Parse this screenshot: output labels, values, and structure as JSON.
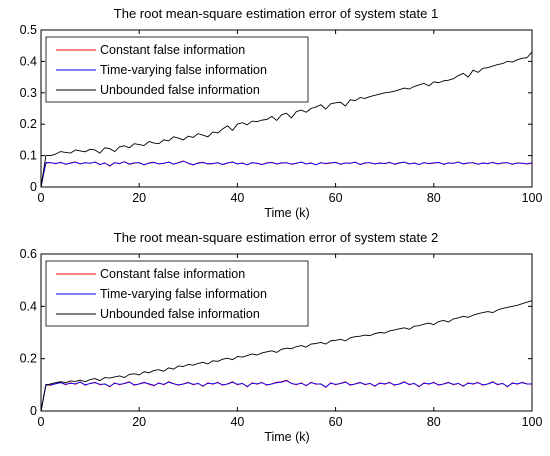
{
  "chart_data": [
    {
      "type": "line",
      "title": "The root mean-square estimation error of system state 1",
      "xlabel": "Time (k)",
      "ylabel": "",
      "xlim": [
        0,
        100
      ],
      "ylim": [
        0,
        0.5
      ],
      "xticks": [
        0,
        20,
        40,
        60,
        80,
        100
      ],
      "yticks": [
        0,
        0.1,
        0.2,
        0.3,
        0.4,
        0.5
      ],
      "xtick_labels": [
        "0",
        "20",
        "40",
        "60",
        "80",
        "100"
      ],
      "ytick_labels": [
        "0",
        "0.1",
        "0.2",
        "0.3",
        "0.4",
        "0.5"
      ],
      "grid": false,
      "legend": "top-left",
      "x": [
        0,
        1,
        2,
        3,
        4,
        5,
        6,
        7,
        8,
        9,
        10,
        11,
        12,
        13,
        14,
        15,
        16,
        17,
        18,
        19,
        20,
        21,
        22,
        23,
        24,
        25,
        26,
        27,
        28,
        29,
        30,
        31,
        32,
        33,
        34,
        35,
        36,
        37,
        38,
        39,
        40,
        41,
        42,
        43,
        44,
        45,
        46,
        47,
        48,
        49,
        50,
        51,
        52,
        53,
        54,
        55,
        56,
        57,
        58,
        59,
        60,
        61,
        62,
        63,
        64,
        65,
        66,
        67,
        68,
        69,
        70,
        71,
        72,
        73,
        74,
        75,
        76,
        77,
        78,
        79,
        80,
        81,
        82,
        83,
        84,
        85,
        86,
        87,
        88,
        89,
        90,
        91,
        92,
        93,
        94,
        95,
        96,
        97,
        98,
        99,
        100
      ],
      "series": [
        {
          "name": "Constant false information",
          "color": "#ff0000",
          "values": [
            0.0,
            0.076,
            0.078,
            0.074,
            0.079,
            0.072,
            0.077,
            0.08,
            0.073,
            0.078,
            0.075,
            0.08,
            0.071,
            0.077,
            0.066,
            0.078,
            0.074,
            0.081,
            0.072,
            0.076,
            0.078,
            0.07,
            0.077,
            0.079,
            0.073,
            0.075,
            0.08,
            0.072,
            0.078,
            0.083,
            0.075,
            0.07,
            0.077,
            0.079,
            0.073,
            0.074,
            0.078,
            0.071,
            0.076,
            0.08,
            0.073,
            0.077,
            0.07,
            0.078,
            0.075,
            0.071,
            0.077,
            0.079,
            0.073,
            0.076,
            0.078,
            0.072,
            0.075,
            0.08,
            0.073,
            0.077,
            0.07,
            0.078,
            0.074,
            0.076,
            0.079,
            0.072,
            0.077,
            0.075,
            0.08,
            0.071,
            0.076,
            0.078,
            0.073,
            0.077,
            0.074,
            0.079,
            0.072,
            0.076,
            0.08,
            0.073,
            0.077,
            0.071,
            0.078,
            0.074,
            0.076,
            0.079,
            0.072,
            0.077,
            0.075,
            0.08,
            0.073,
            0.076,
            0.078,
            0.072,
            0.077,
            0.074,
            0.079,
            0.073,
            0.076,
            0.078,
            0.072,
            0.077,
            0.075,
            0.073,
            0.076
          ]
        },
        {
          "name": "Time-varying false information",
          "color": "#0000ff",
          "values": [
            0.0,
            0.078,
            0.077,
            0.075,
            0.078,
            0.073,
            0.076,
            0.079,
            0.074,
            0.077,
            0.076,
            0.079,
            0.072,
            0.076,
            0.068,
            0.077,
            0.075,
            0.08,
            0.073,
            0.077,
            0.077,
            0.071,
            0.076,
            0.078,
            0.074,
            0.076,
            0.079,
            0.073,
            0.077,
            0.082,
            0.076,
            0.071,
            0.076,
            0.078,
            0.074,
            0.075,
            0.077,
            0.072,
            0.077,
            0.079,
            0.074,
            0.076,
            0.071,
            0.077,
            0.076,
            0.072,
            0.076,
            0.078,
            0.074,
            0.077,
            0.077,
            0.073,
            0.076,
            0.079,
            0.074,
            0.076,
            0.071,
            0.077,
            0.075,
            0.077,
            0.078,
            0.073,
            0.076,
            0.076,
            0.079,
            0.072,
            0.077,
            0.077,
            0.074,
            0.076,
            0.075,
            0.078,
            0.073,
            0.077,
            0.079,
            0.074,
            0.076,
            0.072,
            0.077,
            0.075,
            0.077,
            0.078,
            0.073,
            0.076,
            0.076,
            0.079,
            0.074,
            0.077,
            0.077,
            0.073,
            0.076,
            0.075,
            0.078,
            0.074,
            0.077,
            0.077,
            0.073,
            0.076,
            0.076,
            0.074,
            0.077
          ]
        },
        {
          "name": "Unbounded false information",
          "color": "#000000",
          "values": [
            0.0,
            0.1,
            0.1,
            0.105,
            0.113,
            0.11,
            0.108,
            0.118,
            0.115,
            0.112,
            0.12,
            0.118,
            0.108,
            0.125,
            0.122,
            0.113,
            0.128,
            0.131,
            0.125,
            0.138,
            0.135,
            0.132,
            0.145,
            0.14,
            0.138,
            0.15,
            0.147,
            0.16,
            0.156,
            0.15,
            0.162,
            0.158,
            0.17,
            0.165,
            0.16,
            0.175,
            0.172,
            0.185,
            0.195,
            0.18,
            0.2,
            0.205,
            0.198,
            0.21,
            0.208,
            0.213,
            0.215,
            0.225,
            0.212,
            0.23,
            0.235,
            0.22,
            0.24,
            0.245,
            0.238,
            0.25,
            0.255,
            0.262,
            0.248,
            0.265,
            0.268,
            0.27,
            0.258,
            0.278,
            0.275,
            0.285,
            0.282,
            0.288,
            0.292,
            0.296,
            0.3,
            0.302,
            0.305,
            0.31,
            0.315,
            0.312,
            0.32,
            0.325,
            0.33,
            0.322,
            0.335,
            0.332,
            0.338,
            0.34,
            0.345,
            0.355,
            0.362,
            0.35,
            0.372,
            0.365,
            0.378,
            0.38,
            0.385,
            0.39,
            0.393,
            0.4,
            0.398,
            0.405,
            0.41,
            0.412,
            0.43
          ]
        }
      ]
    },
    {
      "type": "line",
      "title": "The root mean-square estimation error of system state 2",
      "xlabel": "Time (k)",
      "ylabel": "",
      "xlim": [
        0,
        100
      ],
      "ylim": [
        0,
        0.6
      ],
      "xticks": [
        0,
        20,
        40,
        60,
        80,
        100
      ],
      "yticks": [
        0,
        0.2,
        0.4,
        0.6
      ],
      "xtick_labels": [
        "0",
        "20",
        "40",
        "60",
        "80",
        "100"
      ],
      "ytick_labels": [
        "0",
        "0.2",
        "0.4",
        "0.6"
      ],
      "grid": false,
      "legend": "top-left",
      "x": [
        0,
        1,
        2,
        3,
        4,
        5,
        6,
        7,
        8,
        9,
        10,
        11,
        12,
        13,
        14,
        15,
        16,
        17,
        18,
        19,
        20,
        21,
        22,
        23,
        24,
        25,
        26,
        27,
        28,
        29,
        30,
        31,
        32,
        33,
        34,
        35,
        36,
        37,
        38,
        39,
        40,
        41,
        42,
        43,
        44,
        45,
        46,
        47,
        48,
        49,
        50,
        51,
        52,
        53,
        54,
        55,
        56,
        57,
        58,
        59,
        60,
        61,
        62,
        63,
        64,
        65,
        66,
        67,
        68,
        69,
        70,
        71,
        72,
        73,
        74,
        75,
        76,
        77,
        78,
        79,
        80,
        81,
        82,
        83,
        84,
        85,
        86,
        87,
        88,
        89,
        90,
        91,
        92,
        93,
        94,
        95,
        96,
        97,
        98,
        99,
        100
      ],
      "series": [
        {
          "name": "Constant false information",
          "color": "#ff0000",
          "values": [
            0.0,
            0.1,
            0.098,
            0.105,
            0.11,
            0.1,
            0.108,
            0.102,
            0.112,
            0.098,
            0.106,
            0.11,
            0.1,
            0.104,
            0.092,
            0.108,
            0.1,
            0.106,
            0.112,
            0.098,
            0.104,
            0.11,
            0.102,
            0.096,
            0.108,
            0.1,
            0.112,
            0.105,
            0.098,
            0.104,
            0.11,
            0.1,
            0.106,
            0.094,
            0.108,
            0.102,
            0.11,
            0.098,
            0.104,
            0.112,
            0.1,
            0.106,
            0.092,
            0.108,
            0.102,
            0.11,
            0.098,
            0.104,
            0.11,
            0.112,
            0.118,
            0.106,
            0.1,
            0.108,
            0.096,
            0.11,
            0.102,
            0.104,
            0.09,
            0.108,
            0.1,
            0.106,
            0.112,
            0.098,
            0.104,
            0.11,
            0.1,
            0.106,
            0.094,
            0.108,
            0.102,
            0.11,
            0.098,
            0.104,
            0.112,
            0.1,
            0.106,
            0.092,
            0.108,
            0.102,
            0.11,
            0.098,
            0.104,
            0.11,
            0.1,
            0.106,
            0.094,
            0.108,
            0.102,
            0.11,
            0.098,
            0.104,
            0.112,
            0.1,
            0.106,
            0.092,
            0.108,
            0.102,
            0.11,
            0.104,
            0.102
          ]
        },
        {
          "name": "Time-varying false information",
          "color": "#0000ff",
          "values": [
            0.0,
            0.102,
            0.1,
            0.104,
            0.108,
            0.102,
            0.106,
            0.104,
            0.11,
            0.1,
            0.105,
            0.108,
            0.102,
            0.103,
            0.094,
            0.106,
            0.102,
            0.105,
            0.11,
            0.1,
            0.103,
            0.108,
            0.104,
            0.098,
            0.106,
            0.102,
            0.11,
            0.104,
            0.1,
            0.103,
            0.108,
            0.102,
            0.105,
            0.096,
            0.106,
            0.104,
            0.108,
            0.1,
            0.103,
            0.11,
            0.102,
            0.105,
            0.094,
            0.106,
            0.104,
            0.108,
            0.1,
            0.103,
            0.108,
            0.11,
            0.116,
            0.105,
            0.102,
            0.106,
            0.098,
            0.108,
            0.104,
            0.103,
            0.092,
            0.106,
            0.102,
            0.105,
            0.11,
            0.1,
            0.103,
            0.108,
            0.102,
            0.105,
            0.096,
            0.106,
            0.104,
            0.108,
            0.1,
            0.103,
            0.11,
            0.102,
            0.105,
            0.094,
            0.106,
            0.104,
            0.108,
            0.1,
            0.103,
            0.108,
            0.102,
            0.105,
            0.096,
            0.106,
            0.104,
            0.108,
            0.1,
            0.103,
            0.11,
            0.102,
            0.105,
            0.094,
            0.106,
            0.104,
            0.108,
            0.103,
            0.104
          ]
        },
        {
          "name": "Unbounded false information",
          "color": "#000000",
          "values": [
            0.0,
            0.098,
            0.104,
            0.108,
            0.112,
            0.108,
            0.115,
            0.113,
            0.118,
            0.112,
            0.12,
            0.124,
            0.116,
            0.128,
            0.126,
            0.13,
            0.134,
            0.128,
            0.14,
            0.142,
            0.138,
            0.15,
            0.146,
            0.155,
            0.158,
            0.152,
            0.165,
            0.16,
            0.172,
            0.17,
            0.178,
            0.175,
            0.182,
            0.186,
            0.18,
            0.192,
            0.19,
            0.198,
            0.202,
            0.196,
            0.208,
            0.206,
            0.212,
            0.218,
            0.214,
            0.222,
            0.226,
            0.23,
            0.224,
            0.236,
            0.24,
            0.238,
            0.246,
            0.25,
            0.244,
            0.256,
            0.258,
            0.262,
            0.256,
            0.268,
            0.27,
            0.274,
            0.268,
            0.28,
            0.284,
            0.286,
            0.29,
            0.288,
            0.296,
            0.3,
            0.298,
            0.306,
            0.31,
            0.314,
            0.318,
            0.312,
            0.324,
            0.326,
            0.332,
            0.336,
            0.33,
            0.342,
            0.346,
            0.34,
            0.352,
            0.356,
            0.362,
            0.358,
            0.366,
            0.372,
            0.376,
            0.38,
            0.376,
            0.386,
            0.392,
            0.396,
            0.4,
            0.404,
            0.41,
            0.416,
            0.422
          ]
        }
      ]
    }
  ]
}
